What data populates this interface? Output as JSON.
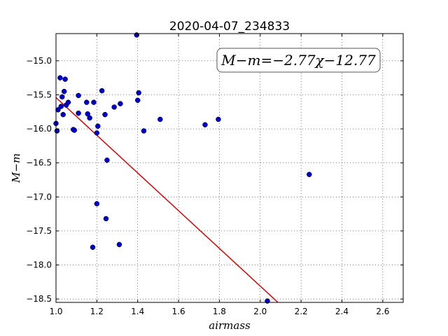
{
  "chart_data": {
    "type": "scatter",
    "title": "2020-04-07_234833",
    "xlabel": "airmass",
    "ylabel": "M−m",
    "xlim": [
      1.0,
      2.7
    ],
    "ylim": [
      -18.55,
      -14.6
    ],
    "y_inverted": true,
    "x_ticks": [
      1.0,
      1.2,
      1.4,
      1.6,
      1.8,
      2.0,
      2.2,
      2.4,
      2.6
    ],
    "x_tick_labels": [
      "1.0",
      "1.2",
      "1.4",
      "1.6",
      "1.8",
      "2.0",
      "2.2",
      "2.4",
      "2.6"
    ],
    "y_ticks": [
      -15.0,
      -15.5,
      -16.0,
      -16.5,
      -17.0,
      -17.5,
      -18.0,
      -18.5
    ],
    "y_tick_labels": [
      "−15.0",
      "−15.5",
      "−16.0",
      "−16.5",
      "−17.0",
      "−17.5",
      "−18.0",
      "−18.5"
    ],
    "grid": true,
    "point_color": "#0000cc",
    "line_color": "#dd0000",
    "annotation": "M−m=−2.77χ−12.77",
    "fit": {
      "slope": -2.77,
      "intercept": -12.77
    },
    "series": [
      {
        "x": [
          1.0,
          1.005,
          1.01,
          1.02,
          1.025,
          1.03,
          1.035,
          1.04,
          1.045,
          1.05,
          1.06,
          1.085,
          1.09,
          1.11,
          1.11,
          1.15,
          1.155,
          1.165,
          1.18,
          1.185,
          1.2,
          1.2,
          1.205,
          1.225,
          1.24,
          1.25,
          1.245,
          1.285,
          1.31,
          1.315,
          1.395,
          1.4,
          1.405,
          1.43,
          1.51,
          1.73,
          1.795,
          2.035,
          2.24
        ],
        "y": [
          -15.92,
          -16.03,
          -15.72,
          -15.25,
          -15.67,
          -15.53,
          -15.79,
          -15.45,
          -15.27,
          -15.65,
          -15.61,
          -16.01,
          -16.02,
          -15.51,
          -15.77,
          -15.61,
          -15.78,
          -15.84,
          -17.74,
          -15.61,
          -16.06,
          -17.1,
          -15.96,
          -15.44,
          -15.79,
          -16.46,
          -17.32,
          -15.68,
          -17.7,
          -15.63,
          -14.62,
          -15.58,
          -15.47,
          -16.03,
          -15.86,
          -15.94,
          -15.86,
          -18.53,
          -16.67
        ]
      }
    ]
  }
}
